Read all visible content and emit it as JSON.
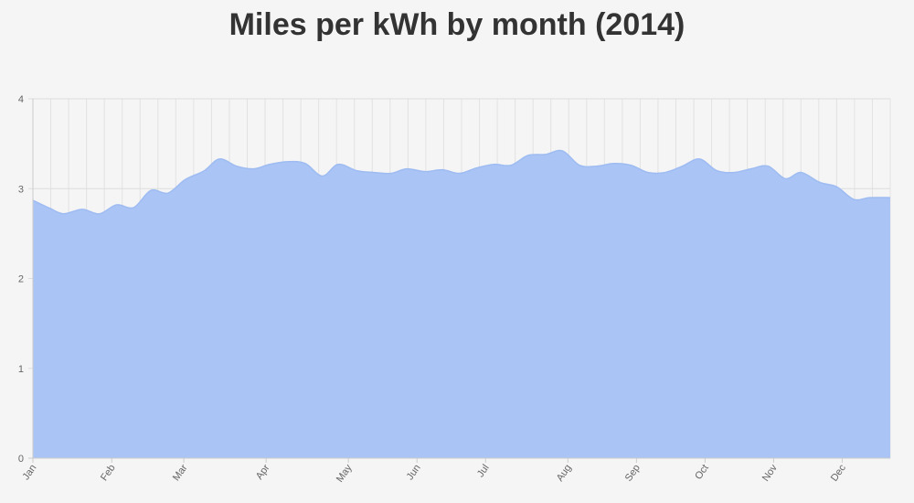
{
  "chart_data": {
    "type": "area",
    "title": "Miles per kWh by month (2014)",
    "xlabel": "",
    "ylabel": "",
    "ylim": [
      0,
      4
    ],
    "yticks": [
      0,
      1,
      2,
      3,
      4
    ],
    "x_range": [
      0,
      12
    ],
    "month_ticks": [
      {
        "label": "Jan",
        "x": 0
      },
      {
        "label": "Feb",
        "x": 1.15
      },
      {
        "label": "Mar",
        "x": 2.2
      },
      {
        "label": "Apr",
        "x": 3.4
      },
      {
        "label": "May",
        "x": 4.6
      },
      {
        "label": "Jun",
        "x": 5.6
      },
      {
        "label": "Jul",
        "x": 6.6
      },
      {
        "label": "Aug",
        "x": 7.8
      },
      {
        "label": "Sep",
        "x": 8.8
      },
      {
        "label": "Oct",
        "x": 9.8
      },
      {
        "label": "Nov",
        "x": 10.8
      },
      {
        "label": "Dec",
        "x": 11.8
      }
    ],
    "grid": true,
    "legend": "none",
    "color": "#a9c4f5",
    "series": [
      {
        "x": [
          0,
          0.25,
          0.45,
          0.72,
          0.97,
          1.22,
          1.47,
          1.72,
          1.97,
          2.22,
          2.5,
          2.72,
          2.97,
          3.22,
          3.45,
          3.72,
          3.97,
          4.22,
          4.45,
          4.72,
          4.97,
          5.22,
          5.45,
          5.72,
          5.97,
          6.22,
          6.47,
          6.72,
          6.97,
          7.22,
          7.47,
          7.72,
          7.97,
          8.22,
          8.47,
          8.72,
          8.97,
          9.22,
          9.47,
          9.72,
          9.97,
          10.22,
          10.47,
          10.72,
          10.97,
          11.2,
          11.47,
          11.72,
          11.97,
          12.2,
          12.5
        ],
        "y": [
          2.87,
          2.78,
          2.72,
          2.77,
          2.72,
          2.82,
          2.79,
          2.98,
          2.95,
          3.1,
          3.2,
          3.33,
          3.25,
          3.22,
          3.27,
          3.3,
          3.28,
          3.14,
          3.27,
          3.2,
          3.18,
          3.17,
          3.22,
          3.19,
          3.21,
          3.17,
          3.23,
          3.27,
          3.26,
          3.37,
          3.38,
          3.42,
          3.26,
          3.25,
          3.28,
          3.26,
          3.18,
          3.18,
          3.25,
          3.33,
          3.2,
          3.18,
          3.22,
          3.25,
          3.11,
          3.18,
          3.07,
          3.02,
          2.88,
          2.9,
          2.9
        ]
      }
    ]
  }
}
